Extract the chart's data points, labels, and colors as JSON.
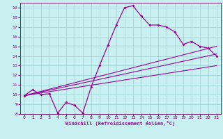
{
  "xlabel": "Windchill (Refroidissement éolien,°C)",
  "bg_color": "#c8f0f0",
  "grid_color": "#a0d8d8",
  "line_color": "#990099",
  "spine_color": "#660066",
  "xlim": [
    -0.5,
    23.5
  ],
  "ylim": [
    8,
    19.5
  ],
  "xticks": [
    0,
    1,
    2,
    3,
    4,
    5,
    6,
    7,
    8,
    9,
    10,
    11,
    12,
    13,
    14,
    15,
    16,
    17,
    18,
    19,
    20,
    21,
    22,
    23
  ],
  "yticks": [
    8,
    9,
    10,
    11,
    12,
    13,
    14,
    15,
    16,
    17,
    18,
    19
  ],
  "main_x": [
    0,
    1,
    2,
    3,
    4,
    5,
    6,
    7,
    8,
    9,
    10,
    11,
    12,
    13,
    14,
    15,
    16,
    17,
    18,
    19,
    20,
    21,
    22,
    23
  ],
  "main_y": [
    9.9,
    10.5,
    10.0,
    10.1,
    8.1,
    9.2,
    8.9,
    8.1,
    10.8,
    13.0,
    15.1,
    17.2,
    19.0,
    19.2,
    18.1,
    17.2,
    17.2,
    17.0,
    16.5,
    15.2,
    15.5,
    15.0,
    14.8,
    14.0
  ],
  "line1_x": [
    0,
    23
  ],
  "line1_y": [
    9.9,
    14.2
  ],
  "line2_x": [
    0,
    23
  ],
  "line2_y": [
    9.9,
    13.0
  ],
  "line3_x": [
    0,
    23
  ],
  "line3_y": [
    9.9,
    15.0
  ]
}
